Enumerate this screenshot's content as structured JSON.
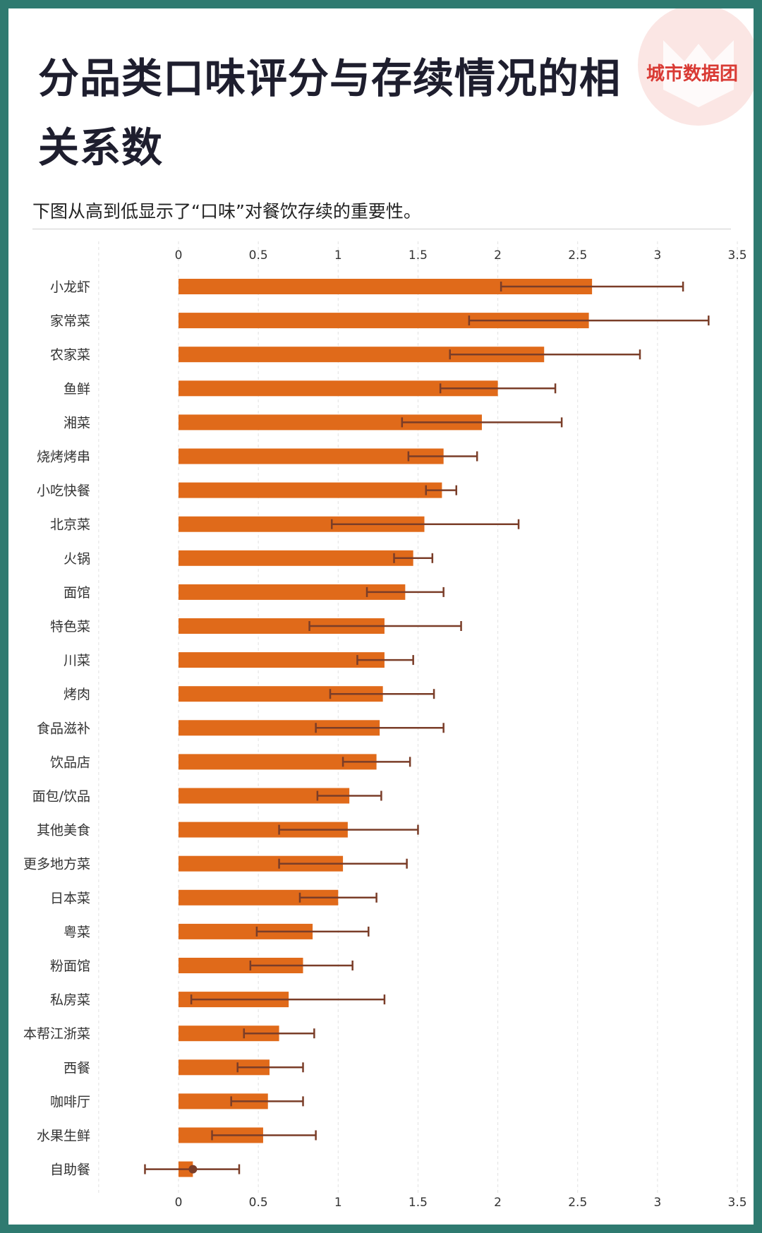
{
  "title": "分品类口味评分与存续情况的相关系数",
  "subtitle": "下图从高到低显示了“口味”对餐饮存续的重要性。",
  "brand": "城市数据团",
  "colors": {
    "bar": "#e06a1a",
    "error_bar": "#7a3d28",
    "frame": "#2f7a70",
    "logo_circle": "#fbe6e4",
    "logo_text": "#d93a34"
  },
  "chart_data": {
    "type": "bar",
    "orientation": "horizontal",
    "error_bars": true,
    "xlim": [
      -0.5,
      3.5
    ],
    "xticks": [
      0,
      0.5,
      1,
      1.5,
      2,
      2.5,
      3,
      3.5
    ],
    "grid": "vertical-dashed",
    "title": "",
    "xlabel": "",
    "ylabel": "",
    "categories": [
      "小龙虾",
      "家常菜",
      "农家菜",
      "鱼鲜",
      "湘菜",
      "烧烤烤串",
      "小吃快餐",
      "北京菜",
      "火锅",
      "面馆",
      "特色菜",
      "川菜",
      "烤肉",
      "食品滋补",
      "饮品店",
      "面包/饮品",
      "其他美食",
      "更多地方菜",
      "日本菜",
      "粤菜",
      "粉面馆",
      "私房菜",
      "本帮江浙菜",
      "西餐",
      "咖啡厅",
      "水果生鲜",
      "自助餐"
    ],
    "values": [
      2.59,
      2.57,
      2.29,
      2.0,
      1.9,
      1.66,
      1.65,
      1.54,
      1.47,
      1.42,
      1.29,
      1.29,
      1.28,
      1.26,
      1.24,
      1.07,
      1.06,
      1.03,
      1.0,
      0.84,
      0.78,
      0.69,
      0.63,
      0.57,
      0.56,
      0.53,
      0.09
    ],
    "error_low": [
      2.02,
      1.82,
      1.7,
      1.64,
      1.4,
      1.44,
      1.55,
      0.96,
      1.35,
      1.18,
      0.82,
      1.12,
      0.95,
      0.86,
      1.03,
      0.87,
      0.63,
      0.63,
      0.76,
      0.49,
      0.45,
      0.08,
      0.41,
      0.37,
      0.33,
      0.21,
      -0.21
    ],
    "error_high": [
      3.16,
      3.32,
      2.89,
      2.36,
      2.4,
      1.87,
      1.74,
      2.13,
      1.59,
      1.66,
      1.77,
      1.47,
      1.6,
      1.66,
      1.45,
      1.27,
      1.5,
      1.43,
      1.24,
      1.19,
      1.09,
      1.29,
      0.85,
      0.78,
      0.78,
      0.86,
      0.38
    ]
  }
}
